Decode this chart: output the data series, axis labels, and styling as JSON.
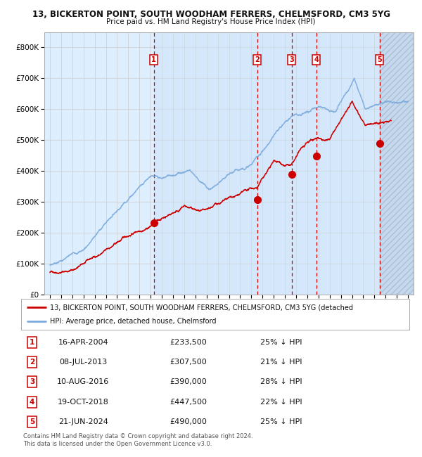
{
  "title1": "13, BICKERTON POINT, SOUTH WOODHAM FERRERS, CHELMSFORD, CM3 5YG",
  "title2": "Price paid vs. HM Land Registry's House Price Index (HPI)",
  "ylim": [
    0,
    850000
  ],
  "yticks": [
    0,
    100000,
    200000,
    300000,
    400000,
    500000,
    600000,
    700000,
    800000
  ],
  "ytick_labels": [
    "£0",
    "£100K",
    "£200K",
    "£300K",
    "£400K",
    "£500K",
    "£600K",
    "£700K",
    "£800K"
  ],
  "xmin_year": 1994.5,
  "xmax_year": 2027.5,
  "xtick_years": [
    1995,
    1996,
    1997,
    1998,
    1999,
    2000,
    2001,
    2002,
    2003,
    2004,
    2005,
    2006,
    2007,
    2008,
    2009,
    2010,
    2011,
    2012,
    2013,
    2014,
    2015,
    2016,
    2017,
    2018,
    2019,
    2020,
    2021,
    2022,
    2023,
    2024,
    2025,
    2026,
    2027
  ],
  "background_color": "#ffffff",
  "plot_bg_color": "#ddeeff",
  "grid_color": "#cccccc",
  "red_line_color": "#cc0000",
  "blue_line_color": "#7aaadd",
  "dashed_line_color": "#cc0000",
  "legend_label_red": "13, BICKERTON POINT, SOUTH WOODHAM FERRERS, CHELMSFORD, CM3 5YG (detached",
  "legend_label_blue": "HPI: Average price, detached house, Chelmsford",
  "transactions": [
    {
      "num": 1,
      "date_str": "16-APR-2004",
      "year": 2004.29,
      "price": 233500,
      "pct": "25%",
      "label": "1"
    },
    {
      "num": 2,
      "date_str": "08-JUL-2013",
      "year": 2013.52,
      "price": 307500,
      "pct": "21%",
      "label": "2"
    },
    {
      "num": 3,
      "date_str": "10-AUG-2016",
      "year": 2016.61,
      "price": 390000,
      "pct": "28%",
      "label": "3"
    },
    {
      "num": 4,
      "date_str": "19-OCT-2018",
      "year": 2018.8,
      "price": 447500,
      "pct": "22%",
      "label": "4"
    },
    {
      "num": 5,
      "date_str": "21-JUN-2024",
      "year": 2024.47,
      "price": 490000,
      "pct": "25%",
      "label": "5"
    }
  ],
  "footer1": "Contains HM Land Registry data © Crown copyright and database right 2024.",
  "footer2": "This data is licensed under the Open Government Licence v3.0.",
  "hatch_start_year": 2024.47,
  "blue_shading_start": 2004.29,
  "blue_shading_end": 2024.47
}
